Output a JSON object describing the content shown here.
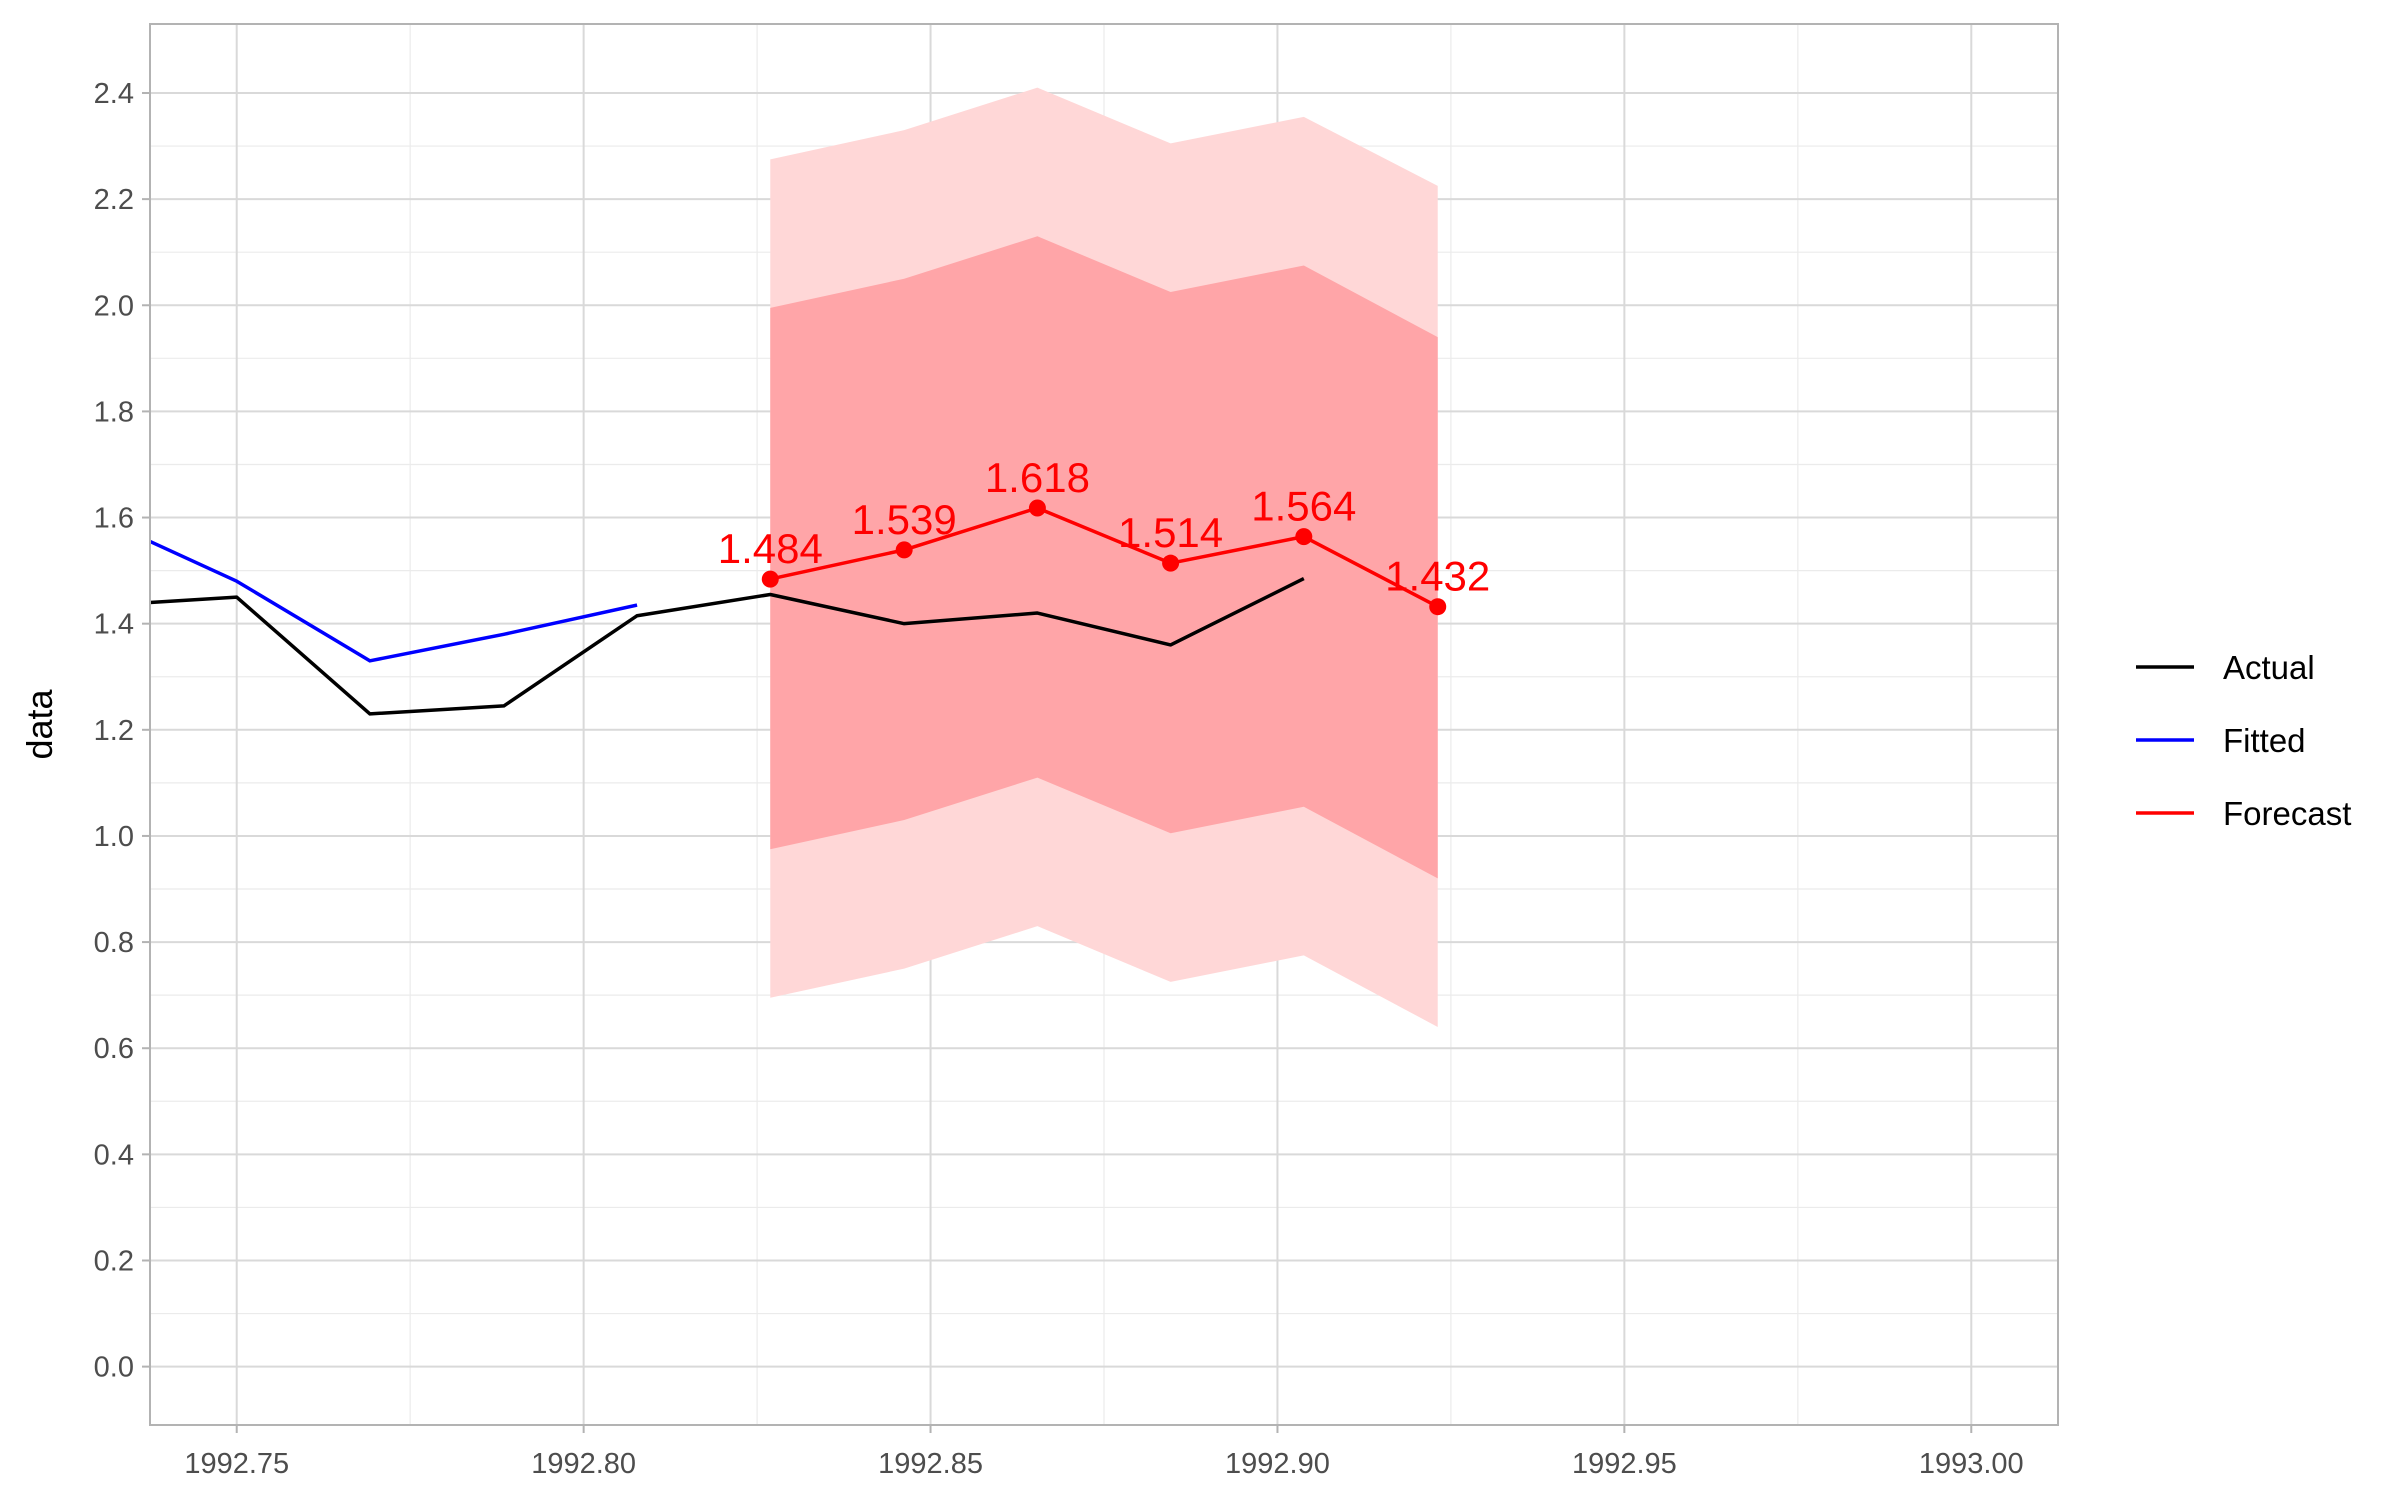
{
  "chart_data": {
    "type": "line",
    "title": "",
    "xlabel": "",
    "ylabel": "data",
    "xlim": [
      1992.7375,
      1993.0125
    ],
    "ylim": [
      -0.11,
      2.53
    ],
    "x_ticks": [
      "1992.75",
      "1992.80",
      "1992.85",
      "1992.90",
      "1992.95",
      "1993.00"
    ],
    "x_tick_values": [
      1992.75,
      1992.8,
      1992.85,
      1992.9,
      1992.95,
      1993.0
    ],
    "y_ticks": [
      "0.0",
      "0.2",
      "0.4",
      "0.6",
      "0.8",
      "1.0",
      "1.2",
      "1.4",
      "1.6",
      "1.8",
      "2.0",
      "2.2",
      "2.4"
    ],
    "y_tick_values": [
      0.0,
      0.2,
      0.4,
      0.6,
      0.8,
      1.0,
      1.2,
      1.4,
      1.6,
      1.8,
      2.0,
      2.2,
      2.4
    ],
    "grid": true,
    "legend_position": "right",
    "series": [
      {
        "name": "Actual",
        "color": "#000000",
        "x": [
          1992.7375,
          1992.75,
          1992.7692,
          1992.7885,
          1992.8077,
          1992.8269,
          1992.8462,
          1992.8654,
          1992.8846,
          1992.9038
        ],
        "y": [
          1.44,
          1.45,
          1.23,
          1.245,
          1.415,
          1.455,
          1.4,
          1.42,
          1.36,
          1.485
        ]
      },
      {
        "name": "Fitted",
        "color": "#0000ff",
        "x": [
          1992.7375,
          1992.75,
          1992.7692,
          1992.7885,
          1992.8077
        ],
        "y": [
          1.555,
          1.48,
          1.33,
          1.38,
          1.435
        ]
      },
      {
        "name": "Forecast",
        "color": "#ff0000",
        "x": [
          1992.8269,
          1992.8462,
          1992.8654,
          1992.8846,
          1992.9038,
          1992.9231
        ],
        "y": [
          1.484,
          1.539,
          1.618,
          1.514,
          1.564,
          1.432
        ],
        "data_labels": [
          "1.484",
          "1.539",
          "1.618",
          "1.514",
          "1.564",
          "1.432"
        ]
      }
    ],
    "intervals": [
      {
        "color": "#ffd7d7",
        "x": [
          1992.8269,
          1992.8462,
          1992.8654,
          1992.8846,
          1992.9038,
          1992.9231
        ],
        "lower": [
          0.695,
          0.75,
          0.83,
          0.725,
          0.775,
          0.64
        ],
        "upper": [
          2.275,
          2.33,
          2.41,
          2.305,
          2.355,
          2.225
        ]
      },
      {
        "color": "#ffa5a8",
        "x": [
          1992.8269,
          1992.8462,
          1992.8654,
          1992.8846,
          1992.9038,
          1992.9231
        ],
        "lower": [
          0.975,
          1.03,
          1.11,
          1.005,
          1.055,
          0.92
        ],
        "upper": [
          1.995,
          2.05,
          2.13,
          2.025,
          2.075,
          1.94
        ]
      }
    ]
  }
}
